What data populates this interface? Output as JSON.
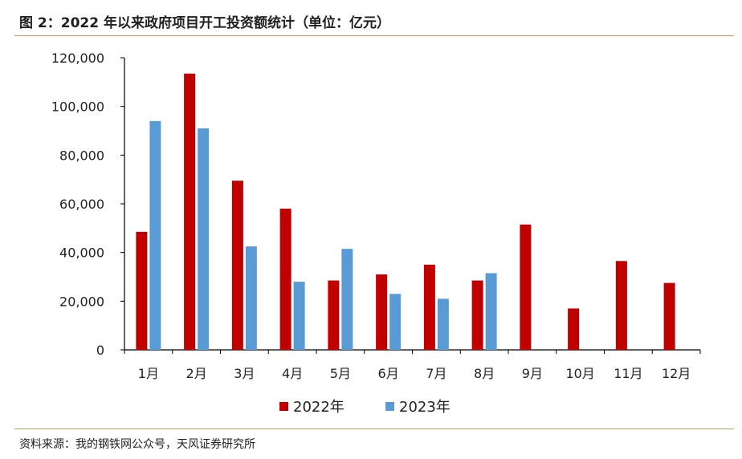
{
  "figure": {
    "title": "图 2：2022 年以来政府项目开工投资额统计（单位：亿元）",
    "source": "资料来源：我的钢铁网公众号，天风证券研究所"
  },
  "chart_data": {
    "type": "bar",
    "categories": [
      "1月",
      "2月",
      "3月",
      "4月",
      "5月",
      "6月",
      "7月",
      "8月",
      "9月",
      "10月",
      "11月",
      "12月"
    ],
    "series": [
      {
        "name": "2022年",
        "color": "#c00000",
        "values": [
          48500,
          113500,
          69500,
          58000,
          28500,
          31000,
          35000,
          28500,
          51500,
          17000,
          36500,
          27500
        ]
      },
      {
        "name": "2023年",
        "color": "#5b9bd5",
        "values": [
          94000,
          91000,
          42500,
          28000,
          41500,
          23000,
          21000,
          31500,
          null,
          null,
          null,
          null
        ]
      }
    ],
    "y_ticks": [
      "0",
      "20,000",
      "40,000",
      "60,000",
      "80,000",
      "100,000",
      "120,000"
    ],
    "ylim": [
      0,
      120000
    ],
    "grid": false,
    "legend_position": "bottom"
  }
}
